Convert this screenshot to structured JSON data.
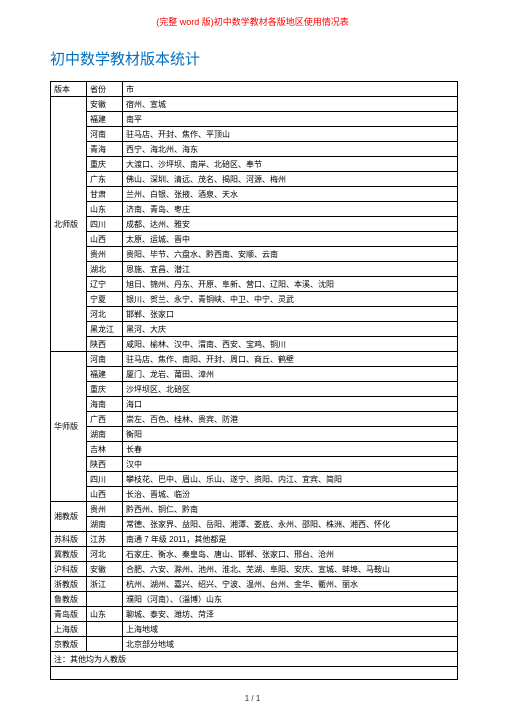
{
  "page_header": "(完整 word 版)初中数学教材各版地区使用情况表",
  "title": "初中数学教材版本统计",
  "footer": "1 / 1",
  "columns": {
    "version": "版本",
    "province": "省份",
    "city": "市"
  },
  "note": "注：其他均为人教版",
  "colors": {
    "header_text": "#ff0000",
    "title_text": "#0070c0",
    "body_text": "#000000",
    "border": "#000000",
    "background": "#ffffff"
  },
  "font_sizes": {
    "header": 9,
    "title": 15,
    "body": 8
  },
  "rows": [
    {
      "version": "北师版",
      "province": "安徽",
      "city": "宿州、宣城"
    },
    {
      "province": "福建",
      "city": "南平"
    },
    {
      "province": "河南",
      "city": "驻马店、开封、焦作、平顶山"
    },
    {
      "province": "青海",
      "city": "西宁、海北州、海东"
    },
    {
      "province": "重庆",
      "city": "大渡口、沙坪坝、南岸、北碚区、奉节"
    },
    {
      "province": "广东",
      "city": "佛山、深圳、清远、茂名、揭阳、河源、梅州"
    },
    {
      "province": "甘肃",
      "city": "兰州、白银、张掖、酒泉、天水"
    },
    {
      "province": "山东",
      "city": "济南、青岛、枣庄"
    },
    {
      "province": "四川",
      "city": "成都、达州、雅安"
    },
    {
      "province": "山西",
      "city": "太原、运城、晋中"
    },
    {
      "province": "贵州",
      "city": "贵阳、毕节、六盘水、黔西南、安顺、云南"
    },
    {
      "province": "湖北",
      "city": "恩施、宜昌、潜江"
    },
    {
      "province": "辽宁",
      "city": "旭日、锦州、丹东、开原、阜新、营口、辽阳、本溪、沈阳"
    },
    {
      "province": "宁夏",
      "city": "银川、贺兰、永宁、青铜峡、中卫、中宁、灵武"
    },
    {
      "province": "河北",
      "city": "邯郸、张家口"
    },
    {
      "province": "黑龙江",
      "city": "黑河、大庆"
    },
    {
      "province": "陕西",
      "city": "咸阳、榆林、汉中、渭南、西安、宝鸡、铜川"
    },
    {
      "version": "华师版",
      "province": "河南",
      "city": "驻马店、焦作、南阳、开封、周口、商丘、鹤壁"
    },
    {
      "province": "福建",
      "city": "厦门、龙岩、莆田、漳州"
    },
    {
      "province": "重庆",
      "city": "沙坪坝区、北碚区"
    },
    {
      "province": "海南",
      "city": "海口"
    },
    {
      "province": "广西",
      "city": "崇左、百色、桂林、贵宾、防港"
    },
    {
      "province": "湖南",
      "city": "衡阳"
    },
    {
      "province": "吉林",
      "city": "长春"
    },
    {
      "province": "陕西",
      "city": "汉中"
    },
    {
      "province": "四川",
      "city": "攀枝花、巴中、眉山、乐山、遂宁、资阳、内江、宜宾、简阳"
    },
    {
      "province": "山西",
      "city": "长治、晋城、临汾"
    },
    {
      "version": "湘教版",
      "province": "贵州",
      "city": "黔西州、铜仁、黔南"
    },
    {
      "province": "湖南",
      "city": "常德、张家界、益阳、岳阳、湘潭、娄底、永州、邵阳、株洲、湘西、怀化"
    },
    {
      "version": "苏科版",
      "province": "江苏",
      "city": "南通 7 年级 2011，其他都是"
    },
    {
      "version": "冀教版",
      "province": "河北",
      "city": "石家庄、衡水、秦皇岛、唐山、邯郸、张家口、邢台、沧州"
    },
    {
      "version": "沪科版",
      "province": "安徽",
      "city": "合肥、六安、滁州、池州、淮北、芜湖、阜阳、安庆、宣城、蚌埠、马鞍山"
    },
    {
      "version": "浙教版",
      "province": "浙江",
      "city": "杭州、湖州、嘉兴、绍兴、宁波、温州、台州、金华、衢州、丽水"
    },
    {
      "version": "鲁教版",
      "province": "",
      "city": "濮阳（河南）、（淄博）山东"
    },
    {
      "version": "青岛版",
      "province": "山东",
      "city": "聊城、泰安、潍坊、菏泽"
    },
    {
      "version": "上海版",
      "province": "",
      "city": "上海地域"
    },
    {
      "version": "京教版",
      "province": "",
      "city": "北京部分地域"
    }
  ],
  "spans": {
    "北师版": 17,
    "华师版": 10,
    "湘教版": 2,
    "苏科版": 1,
    "冀教版": 1,
    "沪科版": 1,
    "浙教版": 1,
    "鲁教版": 1,
    "青岛版": 1,
    "上海版": 1,
    "京教版": 1
  }
}
